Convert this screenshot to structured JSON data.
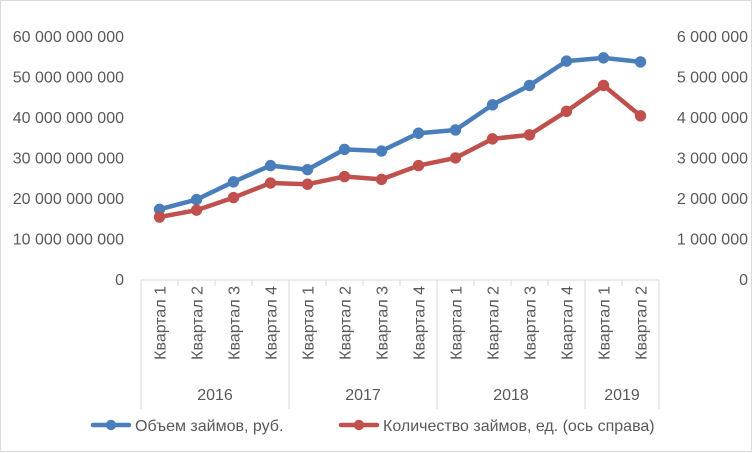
{
  "chart_data": {
    "type": "line",
    "title": "",
    "xlabel": "",
    "ylabel": "",
    "categories": [
      "Квартал 1",
      "Квартал 2",
      "Квартал 3",
      "Квартал 4",
      "Квартал 1",
      "Квартал 2",
      "Квартал 3",
      "Квартал 4",
      "Квартал 1",
      "Квартал 2",
      "Квартал 3",
      "Квартал 4",
      "Квартал 1",
      "Квартал 2"
    ],
    "category_groups": [
      {
        "label": "2016",
        "count": 4
      },
      {
        "label": "2017",
        "count": 4
      },
      {
        "label": "2018",
        "count": 4
      },
      {
        "label": "2019",
        "count": 2
      }
    ],
    "y_left": {
      "min": 0,
      "max": 60000000000,
      "ticks": [
        "0",
        "10 000 000 000",
        "20 000 000 000",
        "30 000 000 000",
        "40 000 000 000",
        "50 000 000 000",
        "60 000 000 000"
      ]
    },
    "y_right": {
      "min": 0,
      "max": 6000000,
      "ticks": [
        "0",
        "1 000 000",
        "2 000 000",
        "3 000 000",
        "4 000 000",
        "5 000 000",
        "6 000 000"
      ]
    },
    "grid": false,
    "legend_position": "bottom",
    "series": [
      {
        "name": "Объем займов, руб.",
        "axis": "left",
        "color": "#4a7ebb",
        "values": [
          17200000000,
          19600000000,
          24000000000,
          28000000000,
          27000000000,
          32000000000,
          31600000000,
          36000000000,
          36800000000,
          43000000000,
          47800000000,
          53800000000,
          54600000000,
          53600000000
        ]
      },
      {
        "name": "Количество займов, ед. (ось справа)",
        "axis": "right",
        "color": "#c0504d",
        "values": [
          1530000,
          1700000,
          2010000,
          2370000,
          2340000,
          2530000,
          2460000,
          2800000,
          2990000,
          3460000,
          3560000,
          4140000,
          4780000,
          4030000
        ]
      }
    ]
  }
}
